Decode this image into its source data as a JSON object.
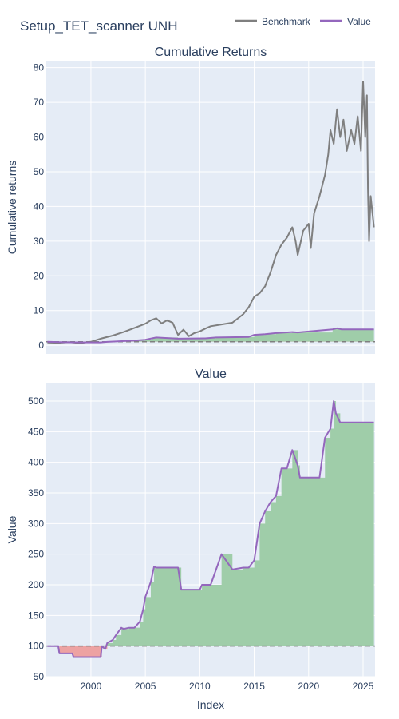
{
  "figure": {
    "title": "Setup_TET_scanner UNH",
    "xlabel": "Index",
    "legend": {
      "placement": "top-right",
      "items": [
        {
          "name": "Benchmark",
          "color": "#7f7f7f"
        },
        {
          "name": "Value",
          "color": "#9467bd"
        }
      ]
    },
    "colors": {
      "plot_bg": "#e5ecf6",
      "grid": "#ffffff",
      "positive_fill": "#9fcda9",
      "negative_fill": "#eda2a2",
      "baseline": "#7f7f7f",
      "text": "#2a3f5f"
    }
  },
  "chart_data": [
    {
      "type": "line",
      "title": "Cumulative Returns",
      "ylabel": "Cumulative returns",
      "xlim": [
        1995.9,
        2026.1
      ],
      "ylim": [
        -2.5,
        82
      ],
      "xticks": [
        2000,
        2005,
        2010,
        2015,
        2020,
        2025
      ],
      "yticks": [
        0,
        10,
        20,
        30,
        40,
        50,
        60,
        70,
        80
      ],
      "grid": true,
      "baseline": 1,
      "series": [
        {
          "name": "Benchmark",
          "color": "#7f7f7f",
          "x": [
            1996.0,
            1997.0,
            1998.0,
            1999.0,
            2000.0,
            2001.0,
            2002.0,
            2003.0,
            2004.0,
            2005.0,
            2005.5,
            2006.0,
            2006.5,
            2007.0,
            2007.5,
            2008.0,
            2008.5,
            2009.0,
            2009.5,
            2010.0,
            2010.5,
            2011.0,
            2012.0,
            2013.0,
            2014.0,
            2014.5,
            2015.0,
            2015.5,
            2016.0,
            2016.5,
            2017.0,
            2017.5,
            2018.0,
            2018.5,
            2018.8,
            2019.0,
            2019.5,
            2020.0,
            2020.2,
            2020.5,
            2021.0,
            2021.5,
            2021.8,
            2022.0,
            2022.3,
            2022.6,
            2022.9,
            2023.2,
            2023.5,
            2023.9,
            2024.2,
            2024.5,
            2024.8,
            2025.0,
            2025.2,
            2025.35,
            2025.45,
            2025.55,
            2025.7,
            2026.0
          ],
          "y": [
            0.8,
            0.7,
            0.9,
            0.6,
            1.0,
            2.0,
            2.8,
            3.8,
            5.0,
            6.2,
            7.2,
            7.8,
            6.3,
            7.2,
            6.5,
            3.0,
            4.5,
            2.6,
            3.5,
            4.0,
            4.8,
            5.5,
            6.0,
            6.5,
            9.0,
            11.0,
            14.0,
            15.0,
            17.0,
            21.0,
            26.0,
            29.0,
            31.0,
            34.0,
            30.0,
            26.0,
            33.0,
            35.0,
            28.0,
            38.0,
            43.0,
            49.0,
            55.0,
            62.0,
            58.0,
            68.0,
            60.0,
            65.0,
            56.0,
            62.0,
            58.0,
            66.0,
            56.0,
            76.0,
            60.0,
            72.0,
            45.0,
            30.0,
            43.0,
            34.0
          ]
        },
        {
          "name": "Value",
          "color": "#9467bd",
          "x": [
            1996.0,
            1997.1,
            1998.4,
            2000.9,
            2001.5,
            2002.3,
            2003.0,
            2004.0,
            2005.0,
            2005.6,
            2006.0,
            2008.0,
            2010.5,
            2011.5,
            2014.5,
            2015.0,
            2016.0,
            2017.0,
            2018.5,
            2019.0,
            2022.2,
            2022.6,
            2023.0,
            2026.0
          ],
          "y": [
            1.0,
            0.9,
            0.83,
            0.82,
            0.98,
            1.1,
            1.2,
            1.35,
            1.6,
            2.0,
            2.25,
            1.9,
            2.0,
            2.25,
            2.4,
            3.0,
            3.2,
            3.5,
            3.8,
            3.7,
            4.6,
            4.9,
            4.6,
            4.6
          ]
        }
      ]
    },
    {
      "type": "area",
      "title": "Value",
      "ylabel": "Value",
      "xlim": [
        1995.9,
        2026.1
      ],
      "ylim": [
        50,
        530
      ],
      "xticks": [
        2000,
        2005,
        2010,
        2015,
        2020,
        2025
      ],
      "yticks": [
        50,
        100,
        150,
        200,
        250,
        300,
        350,
        400,
        450,
        500
      ],
      "grid": true,
      "baseline": 100,
      "series": [
        {
          "name": "Value",
          "color": "#9467bd",
          "x": [
            1996.0,
            1997.0,
            1997.1,
            1998.3,
            1998.4,
            1999.8,
            2000.0,
            2000.9,
            2001.0,
            2001.3,
            2001.5,
            2002.0,
            2002.3,
            2002.8,
            2003.0,
            2003.5,
            2004.0,
            2004.5,
            2004.8,
            2005.0,
            2005.5,
            2005.8,
            2006.0,
            2006.5,
            2007.0,
            2008.0,
            2008.3,
            2009.0,
            2010.0,
            2010.2,
            2011.0,
            2012.0,
            2013.0,
            2014.0,
            2014.5,
            2015.0,
            2015.5,
            2016.0,
            2016.5,
            2017.0,
            2017.5,
            2018.0,
            2018.5,
            2019.0,
            2019.2,
            2020.0,
            2021.0,
            2021.5,
            2022.0,
            2022.3,
            2022.5,
            2022.9,
            2023.0,
            2023.3,
            2026.0
          ],
          "y": [
            100,
            100,
            88,
            88,
            82,
            82,
            82,
            82,
            100,
            95,
            105,
            110,
            118,
            130,
            128,
            130,
            130,
            140,
            160,
            180,
            205,
            230,
            228,
            228,
            228,
            228,
            192,
            192,
            192,
            200,
            200,
            250,
            225,
            228,
            228,
            240,
            300,
            320,
            335,
            345,
            390,
            390,
            420,
            395,
            375,
            375,
            375,
            440,
            455,
            500,
            480,
            465,
            465,
            465,
            465
          ]
        }
      ]
    }
  ]
}
